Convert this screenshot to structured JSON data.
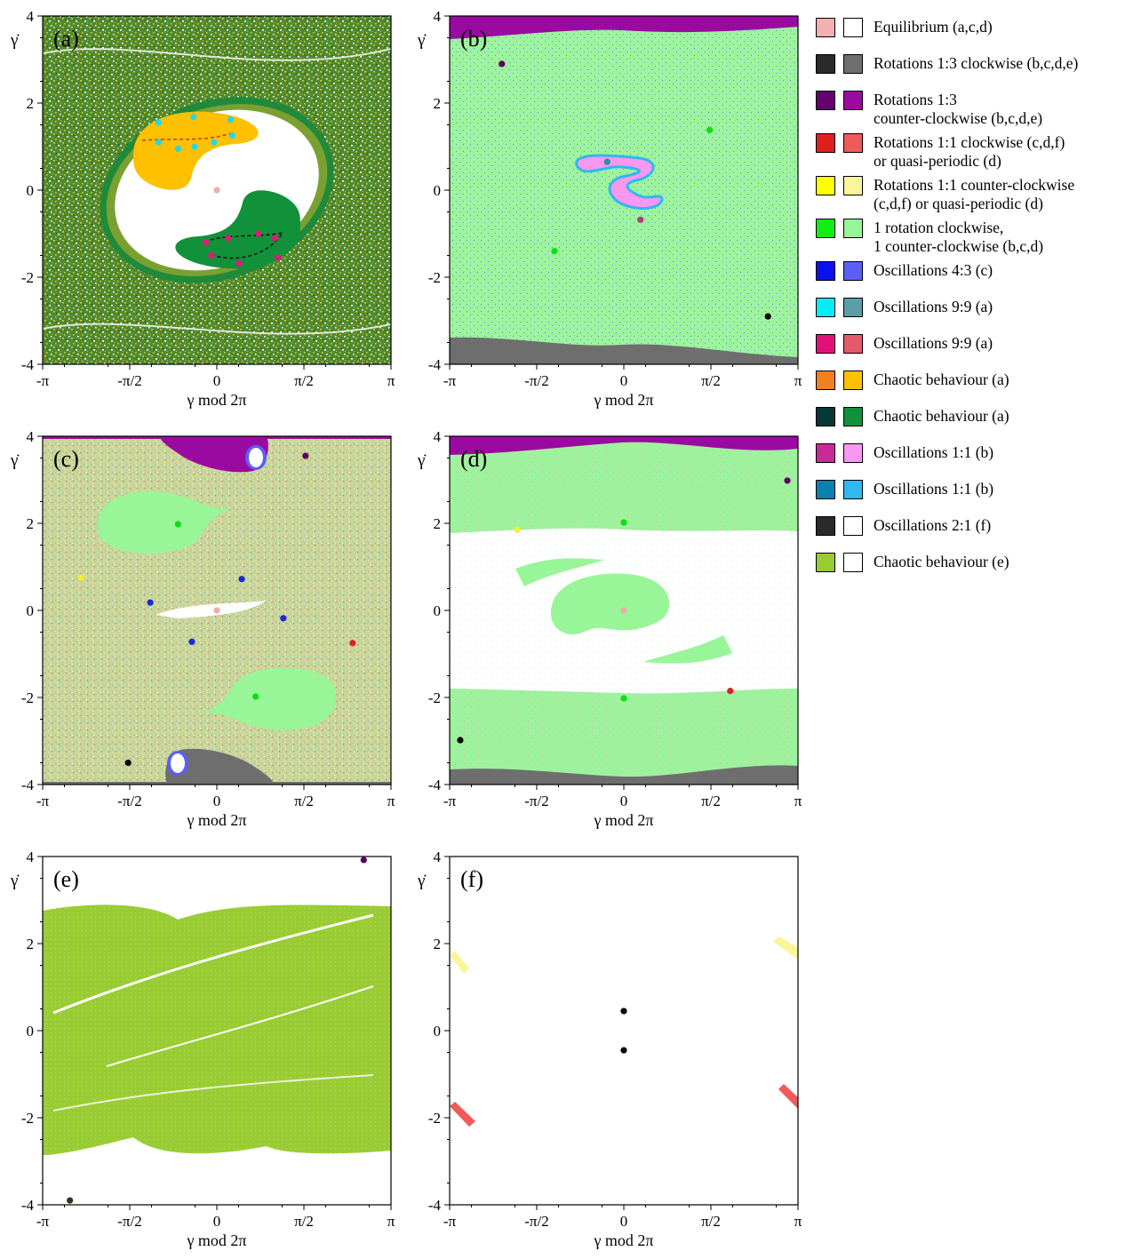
{
  "chart_data": {
    "type": "scatter",
    "shared_axes": {
      "xlabel": "γ mod 2π",
      "ylabel": "γ̇",
      "xlim": [
        -3.14159,
        3.14159
      ],
      "ylim": [
        -4,
        4
      ],
      "xtick_labels": [
        "-π",
        "-π/2",
        "0",
        "π/2",
        "π"
      ],
      "ytick_labels": [
        "-4",
        "-2",
        "0",
        "2",
        "4"
      ]
    },
    "panels": [
      {
        "label": "(a)",
        "background": "chaotic mix of dark green, yellow and white",
        "points": [
          {
            "x": 0.0,
            "y": 0.0,
            "color": "#f2aaaa"
          },
          {
            "x": -1.05,
            "y": 1.55,
            "color": "#22d8ee"
          },
          {
            "x": -0.42,
            "y": 1.68,
            "color": "#22d8ee"
          },
          {
            "x": 0.25,
            "y": 1.62,
            "color": "#22d8ee"
          },
          {
            "x": 0.28,
            "y": 1.25,
            "color": "#22d8ee"
          },
          {
            "x": -0.05,
            "y": 1.1,
            "color": "#22d8ee"
          },
          {
            "x": -0.4,
            "y": 1.0,
            "color": "#22d8ee"
          },
          {
            "x": -0.7,
            "y": 0.95,
            "color": "#22d8ee"
          },
          {
            "x": -1.05,
            "y": 1.1,
            "color": "#22d8ee"
          },
          {
            "x": -0.2,
            "y": -1.2,
            "color": "#e6177a"
          },
          {
            "x": 0.2,
            "y": -1.1,
            "color": "#e6177a"
          },
          {
            "x": 0.75,
            "y": -1.0,
            "color": "#e6177a"
          },
          {
            "x": 1.05,
            "y": -1.1,
            "color": "#e6177a"
          },
          {
            "x": 1.1,
            "y": -1.55,
            "color": "#e6177a"
          },
          {
            "x": 0.4,
            "y": -1.68,
            "color": "#e6177a"
          },
          {
            "x": -0.1,
            "y": -1.5,
            "color": "#e6177a"
          }
        ]
      },
      {
        "label": "(b)",
        "background": "light green with blue specks",
        "points": [
          {
            "x": -2.2,
            "y": 2.9,
            "color": "#5a0060"
          },
          {
            "x": 1.55,
            "y": 1.38,
            "color": "#11dd11"
          },
          {
            "x": -0.3,
            "y": 0.65,
            "color": "#2f8f9f"
          },
          {
            "x": 0.3,
            "y": -0.68,
            "color": "#b0407f"
          },
          {
            "x": -1.25,
            "y": -1.4,
            "color": "#11dd11"
          },
          {
            "x": 2.6,
            "y": -2.9,
            "color": "#000000"
          }
        ]
      },
      {
        "label": "(c)",
        "background": "speckled chaotic mix",
        "points": [
          {
            "x": 1.6,
            "y": 3.55,
            "color": "#5a0060"
          },
          {
            "x": -0.7,
            "y": 1.98,
            "color": "#11dd11"
          },
          {
            "x": -2.45,
            "y": 0.75,
            "color": "#f5ee33"
          },
          {
            "x": 0.45,
            "y": 0.72,
            "color": "#1a2ad8"
          },
          {
            "x": -1.2,
            "y": 0.18,
            "color": "#1a2ad8"
          },
          {
            "x": 0.0,
            "y": 0.0,
            "color": "#f2aaaa"
          },
          {
            "x": 1.2,
            "y": -0.18,
            "color": "#1a2ad8"
          },
          {
            "x": -0.45,
            "y": -0.72,
            "color": "#1a2ad8"
          },
          {
            "x": 2.45,
            "y": -0.75,
            "color": "#e02020"
          },
          {
            "x": 0.7,
            "y": -1.98,
            "color": "#11dd11"
          },
          {
            "x": -1.6,
            "y": -3.5,
            "color": "#000000"
          }
        ]
      },
      {
        "label": "(d)",
        "background": "light green with white chaotic region",
        "points": [
          {
            "x": 2.95,
            "y": 2.98,
            "color": "#5a0060"
          },
          {
            "x": 0.0,
            "y": 2.02,
            "color": "#11dd11"
          },
          {
            "x": -1.92,
            "y": 1.85,
            "color": "#f5ee33"
          },
          {
            "x": 0.0,
            "y": 0.0,
            "color": "#f2aaaa"
          },
          {
            "x": 1.92,
            "y": -1.85,
            "color": "#e02020"
          },
          {
            "x": 0.0,
            "y": -2.02,
            "color": "#11dd11"
          },
          {
            "x": -2.95,
            "y": -2.98,
            "color": "#000000"
          }
        ]
      },
      {
        "label": "(e)",
        "background": "white with olive-green chaotic bands",
        "points": [
          {
            "x": 2.65,
            "y": 3.92,
            "color": "#5a0060"
          },
          {
            "x": -2.65,
            "y": -3.9,
            "color": "#2a3a1a"
          }
        ]
      },
      {
        "label": "(f)",
        "background": "white",
        "points": [
          {
            "x": 0.0,
            "y": 0.45,
            "color": "#000000"
          },
          {
            "x": 0.0,
            "y": -0.45,
            "color": "#000000"
          }
        ]
      }
    ]
  },
  "legend": [
    {
      "label": "Equilibrium (a,c,d)",
      "c1": "#f4b0b0",
      "c2": "#ffffff"
    },
    {
      "label": "Rotations 1:3 clockwise (b,c,d,e)",
      "c1": "#2a2a2a",
      "c2": "#6e6e6e"
    },
    {
      "label": "Rotations 1:3\ncounter-clockwise (b,c,d,e)",
      "c1": "#640070",
      "c2": "#9a0aa0"
    },
    {
      "label": "Rotations 1:1 clockwise (c,d,f)\nor quasi-periodic (d)",
      "c1": "#e01e1e",
      "c2": "#f05a5a"
    },
    {
      "label": "Rotations 1:1 counter-clockwise\n(c,d,f) or quasi-periodic (d)",
      "c1": "#ffff00",
      "c2": "#fbf599"
    },
    {
      "label": "1 rotation clockwise,\n1 counter-clockwise (b,c,d)",
      "c1": "#11ee11",
      "c2": "#98f598"
    },
    {
      "label": "Oscillations 4:3 (c)",
      "c1": "#0a10ee",
      "c2": "#5b5ff5"
    },
    {
      "label": "Oscillations 9:9 (a)",
      "c1": "#00eef5",
      "c2": "#5a9ea8"
    },
    {
      "label": "Oscillations 9:9 (a)",
      "c1": "#e0127a",
      "c2": "#e35a6a"
    },
    {
      "label": "Chaotic behaviour (a)",
      "c1": "#f08020",
      "c2": "#ffc000"
    },
    {
      "label": "Chaotic behaviour (a)",
      "c1": "#063838",
      "c2": "#11913a"
    },
    {
      "label": "Oscillations 1:1 (b)",
      "c1": "#c82a98",
      "c2": "#f898f0"
    },
    {
      "label": "Oscillations 1:1 (b)",
      "c1": "#0a80b0",
      "c2": "#30b8f0"
    },
    {
      "label": "Oscillations 2:1 (f)",
      "c1": "#2a2a2a",
      "c2": "#ffffff"
    },
    {
      "label": "Chaotic behaviour (e)",
      "c1": "#98cc32",
      "c2": "#ffffff"
    }
  ]
}
